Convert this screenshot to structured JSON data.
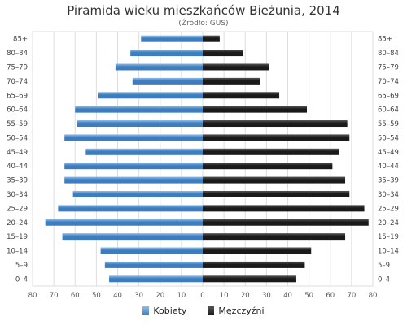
{
  "title": "Piramida wieku mieszkańców Bieżunia, 2014",
  "subtitle": "(Źródło: GUS)",
  "colors": {
    "female": "#3d7dbf",
    "female_light": "#8fbde8",
    "male": "#1a1a1a",
    "male_light": "#555555",
    "grid": "#dddddd"
  },
  "chart_data": {
    "type": "bar",
    "orientation": "horizontal",
    "categories": [
      "85+",
      "80–84",
      "75–79",
      "70–74",
      "65–69",
      "60–64",
      "55–59",
      "50–54",
      "45–49",
      "40–44",
      "35–39",
      "30–34",
      "25–29",
      "20–24",
      "15–19",
      "10–14",
      "5–9",
      "0–4"
    ],
    "series": [
      {
        "name": "Kobiety",
        "values": [
          29,
          34,
          41,
          33,
          49,
          60,
          59,
          65,
          55,
          65,
          65,
          61,
          68,
          74,
          66,
          48,
          46,
          44
        ]
      },
      {
        "name": "Mężczyźni",
        "values": [
          8,
          19,
          31,
          27,
          36,
          49,
          68,
          69,
          64,
          61,
          67,
          69,
          76,
          78,
          67,
          51,
          48,
          44
        ]
      }
    ],
    "xlim": [
      -80,
      80
    ],
    "xticks": [
      "80",
      "70",
      "60",
      "50",
      "40",
      "30",
      "20",
      "10",
      "0",
      "10",
      "20",
      "30",
      "40",
      "50",
      "60",
      "70",
      "80"
    ],
    "grid": true,
    "legend_position": "bottom"
  },
  "legend": {
    "female_label": "Kobiety",
    "male_label": "Mężczyźni"
  }
}
